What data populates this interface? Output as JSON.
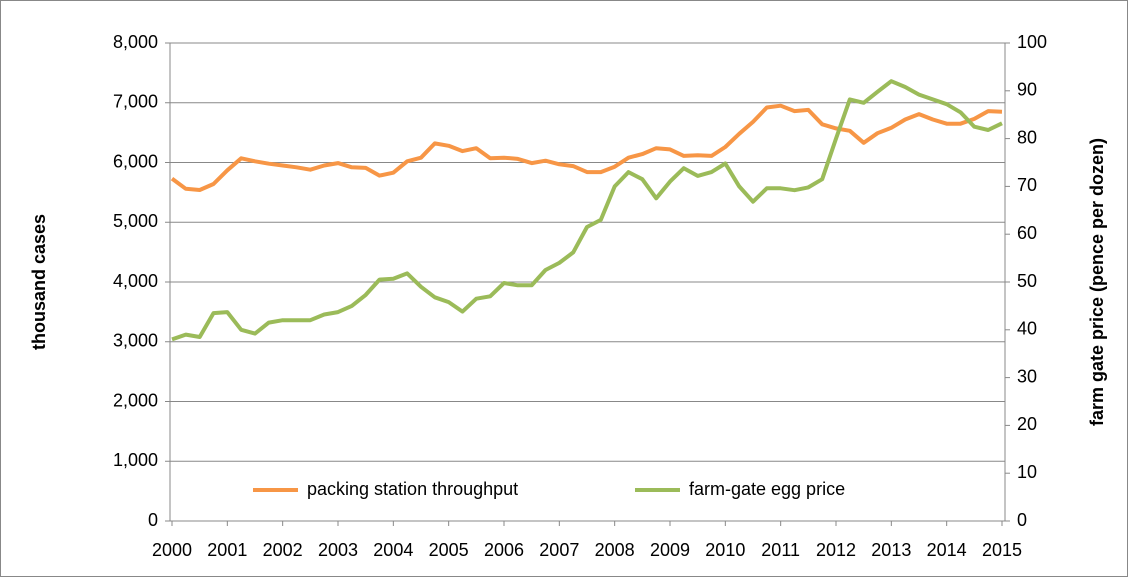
{
  "chart_data": {
    "type": "line",
    "categories": [
      "2000",
      null,
      null,
      null,
      "2001",
      null,
      null,
      null,
      "2002",
      null,
      null,
      null,
      "2003",
      null,
      null,
      null,
      "2004",
      null,
      null,
      null,
      "2005",
      null,
      null,
      null,
      "2006",
      null,
      null,
      null,
      "2007",
      null,
      null,
      null,
      "2008",
      null,
      null,
      null,
      "2009",
      null,
      null,
      null,
      "2010",
      null,
      null,
      null,
      "2011",
      null,
      null,
      null,
      "2012",
      null,
      null,
      null,
      "2013",
      null,
      null,
      null,
      "2014",
      null,
      null,
      null,
      "2015"
    ],
    "series": [
      {
        "name": "packing station throughput",
        "color": "#f79646",
        "values": [
          5730,
          5560,
          5540,
          5640,
          5870,
          6070,
          6020,
          5980,
          5950,
          5920,
          5880,
          5950,
          5990,
          5920,
          5910,
          5780,
          5830,
          6020,
          6080,
          6320,
          6280,
          6190,
          6240,
          6070,
          6080,
          6060,
          5990,
          6030,
          5970,
          5940,
          5840,
          5840,
          5930,
          6080,
          6140,
          6240,
          6220,
          6110,
          6120,
          6110,
          6260,
          6480,
          6680,
          6920,
          6950,
          6860,
          6880,
          6640,
          6570,
          6530,
          6330,
          6490,
          6580,
          6720,
          6810,
          6720,
          6650,
          6650,
          6730,
          6860,
          6850
        ]
      },
      {
        "name": "farm-gate egg price",
        "color": "#9bbb59",
        "axis": "y2",
        "values": [
          38,
          39,
          38.5,
          43.5,
          43.7,
          40,
          39.2,
          41.5,
          42,
          42,
          42,
          43.2,
          43.7,
          45,
          47.3,
          50.5,
          50.7,
          51.8,
          49,
          46.8,
          45.8,
          43.8,
          46.5,
          47,
          49.8,
          49.3,
          49.3,
          52.5,
          54,
          56.2,
          61.5,
          63,
          70,
          73,
          71.5,
          67.5,
          71,
          73.8,
          72.2,
          73,
          74.8,
          70,
          66.8,
          69.6,
          69.6,
          69.2,
          69.8,
          71.5,
          80,
          88.2,
          87.5,
          89.8,
          92,
          90.8,
          89.2,
          88.2,
          87.2,
          85.5,
          82.5,
          81.8,
          83.2
        ]
      }
    ],
    "y_label": "thousand cases",
    "y2_label": "farm gate price (pence per dozen)",
    "ylim": [
      0,
      8000
    ],
    "yticks": [
      0,
      {
        "value": 1000,
        "label": "1,000"
      },
      {
        "value": 2000,
        "label": "2,000"
      },
      {
        "value": 3000,
        "label": "3,000"
      },
      {
        "value": 4000,
        "label": "4,000"
      },
      {
        "value": 5000,
        "label": "5,000"
      },
      {
        "value": 6000,
        "label": "6,000"
      },
      {
        "value": 7000,
        "label": "7,000"
      },
      {
        "value": 8000,
        "label": "8,000"
      }
    ],
    "y2lim": [
      0,
      100
    ],
    "y2ticks": [
      0,
      10,
      20,
      30,
      40,
      50,
      60,
      70,
      80,
      90,
      100
    ],
    "grid": true,
    "legend": "bottom"
  }
}
